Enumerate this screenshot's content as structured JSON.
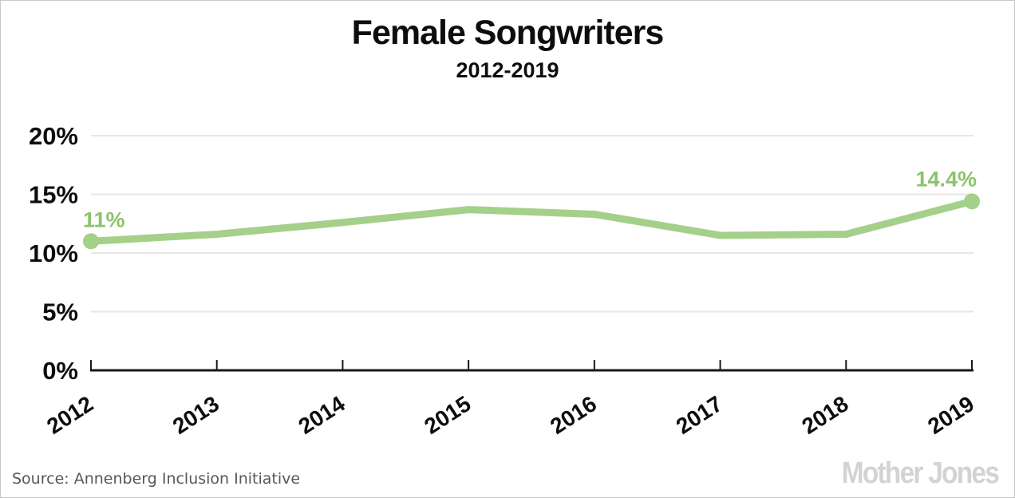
{
  "header": {
    "title": "Female Songwriters",
    "subtitle": "2012-2019"
  },
  "footer": {
    "source": "Source: Annenberg Inclusion Initiative",
    "logo": "Mother Jones"
  },
  "colors": {
    "line": "#a4d08a",
    "endpoint_dot": "#a4d08a",
    "point_label": "#8bc36a",
    "grid": "#e6e6e6",
    "axis": "#1a1a1a",
    "tick_label": "#0d0d0d",
    "source_text": "#575757",
    "logo_text": "#d3d3d3"
  },
  "chart_data": {
    "type": "line",
    "title": "Female Songwriters",
    "subtitle": "2012-2019",
    "categories": [
      "2012",
      "2013",
      "2014",
      "2015",
      "2016",
      "2017",
      "2018",
      "2019"
    ],
    "values": [
      11.0,
      11.6,
      12.6,
      13.7,
      13.3,
      11.5,
      11.6,
      14.4
    ],
    "series_name": "Female songwriters (%)",
    "xlabel": "",
    "ylabel": "",
    "ylim": [
      0,
      20
    ],
    "yticks": [
      {
        "label": "0%",
        "value": 0
      },
      {
        "label": "5%",
        "value": 5
      },
      {
        "label": "10%",
        "value": 10
      },
      {
        "label": "15%",
        "value": 15
      },
      {
        "label": "20%",
        "value": 20
      }
    ],
    "grid": "horizontal gridlines on, no vertical gridlines",
    "legend": "none",
    "x_tick_rotation_deg": -33,
    "endpoint_markers": true,
    "point_labels": {
      "first": "11%",
      "last": "14.4%"
    }
  }
}
